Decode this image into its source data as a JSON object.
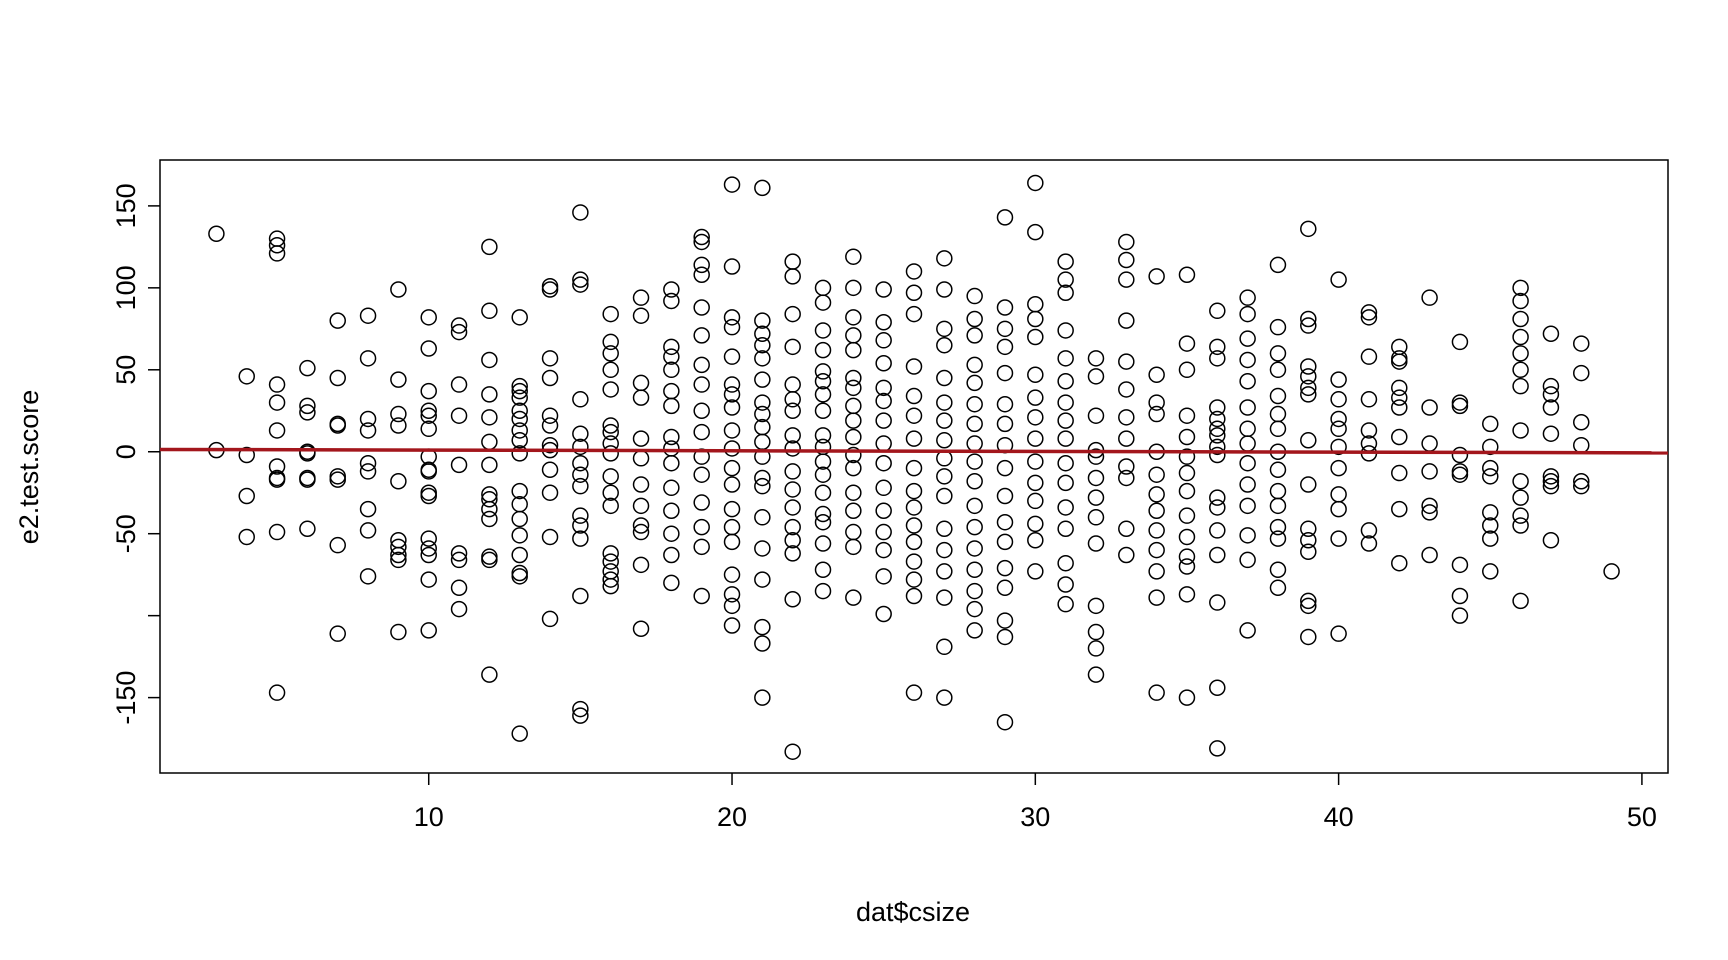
{
  "chart_data": {
    "type": "scatter",
    "xlabel": "dat$csize",
    "ylabel": "e2.test.score",
    "xlim": [
      1.14,
      50.86
    ],
    "ylim": [
      -196,
      178
    ],
    "xticks": [
      10,
      20,
      30,
      40,
      50
    ],
    "yticks": [
      -150,
      {
        "value": -100,
        "label": null
      },
      -50,
      0,
      50,
      100,
      150
    ],
    "color": "#000000",
    "regression": {
      "intercept": 1.45,
      "slope": -0.042,
      "color": "#a3161c"
    },
    "x": [
      3,
      3,
      4,
      4,
      4,
      4,
      5,
      5,
      5,
      5,
      5,
      5,
      5,
      5,
      5,
      5,
      5,
      6,
      6,
      6,
      6,
      6,
      6,
      6,
      6,
      7,
      7,
      7,
      7,
      7,
      7,
      7,
      7,
      8,
      8,
      8,
      8,
      8,
      8,
      8,
      8,
      8,
      9,
      9,
      9,
      9,
      9,
      9,
      9,
      9,
      9,
      9,
      10,
      10,
      10,
      10,
      10,
      10,
      10,
      10,
      10,
      10,
      10,
      10,
      10,
      10,
      10,
      10,
      11,
      11,
      11,
      11,
      11,
      11,
      11,
      11,
      11,
      12,
      12,
      12,
      12,
      12,
      12,
      12,
      12,
      12,
      12,
      12,
      12,
      12,
      12,
      13,
      13,
      13,
      13,
      13,
      13,
      13,
      13,
      13,
      13,
      13,
      13,
      13,
      13,
      13,
      13,
      13,
      14,
      14,
      14,
      14,
      14,
      14,
      14,
      14,
      14,
      14,
      14,
      14,
      15,
      15,
      15,
      15,
      15,
      15,
      15,
      15,
      15,
      15,
      15,
      15,
      15,
      15,
      15,
      16,
      16,
      16,
      16,
      16,
      16,
      16,
      16,
      16,
      16,
      16,
      16,
      16,
      16,
      16,
      16,
      16,
      17,
      17,
      17,
      17,
      17,
      17,
      17,
      17,
      17,
      17,
      17,
      17,
      18,
      18,
      18,
      18,
      18,
      18,
      18,
      18,
      18,
      18,
      18,
      18,
      18,
      18,
      18,
      19,
      19,
      19,
      19,
      19,
      19,
      19,
      19,
      19,
      19,
      19,
      19,
      19,
      19,
      19,
      19,
      20,
      20,
      20,
      20,
      20,
      20,
      20,
      20,
      20,
      20,
      20,
      20,
      20,
      20,
      20,
      20,
      20,
      20,
      20,
      21,
      21,
      21,
      21,
      21,
      21,
      21,
      21,
      21,
      21,
      21,
      21,
      21,
      21,
      21,
      21,
      21,
      21,
      21,
      22,
      22,
      22,
      22,
      22,
      22,
      22,
      22,
      22,
      22,
      22,
      22,
      22,
      22,
      22,
      22,
      22,
      23,
      23,
      23,
      23,
      23,
      23,
      23,
      23,
      23,
      23,
      23,
      23,
      23,
      23,
      23,
      23,
      23,
      23,
      24,
      24,
      24,
      24,
      24,
      24,
      24,
      24,
      24,
      24,
      24,
      24,
      24,
      24,
      24,
      24,
      24,
      25,
      25,
      25,
      25,
      25,
      25,
      25,
      25,
      25,
      25,
      25,
      25,
      25,
      25,
      25,
      26,
      26,
      26,
      26,
      26,
      26,
      26,
      26,
      26,
      26,
      26,
      26,
      26,
      26,
      26,
      26,
      27,
      27,
      27,
      27,
      27,
      27,
      27,
      27,
      27,
      27,
      27,
      27,
      27,
      27,
      27,
      27,
      27,
      28,
      28,
      28,
      28,
      28,
      28,
      28,
      28,
      28,
      28,
      28,
      28,
      28,
      28,
      28,
      28,
      28,
      29,
      29,
      29,
      29,
      29,
      29,
      29,
      29,
      29,
      29,
      29,
      29,
      29,
      29,
      29,
      29,
      29,
      30,
      30,
      30,
      30,
      30,
      30,
      30,
      30,
      30,
      30,
      30,
      30,
      30,
      30,
      30,
      31,
      31,
      31,
      31,
      31,
      31,
      31,
      31,
      31,
      31,
      31,
      31,
      31,
      31,
      31,
      31,
      32,
      32,
      32,
      32,
      32,
      32,
      32,
      32,
      32,
      32,
      32,
      32,
      32,
      33,
      33,
      33,
      33,
      33,
      33,
      33,
      33,
      33,
      33,
      33,
      33,
      34,
      34,
      34,
      34,
      34,
      34,
      34,
      34,
      34,
      34,
      34,
      34,
      34,
      35,
      35,
      35,
      35,
      35,
      35,
      35,
      35,
      35,
      35,
      35,
      35,
      35,
      35,
      36,
      36,
      36,
      36,
      36,
      36,
      36,
      36,
      36,
      36,
      36,
      36,
      36,
      36,
      36,
      36,
      37,
      37,
      37,
      37,
      37,
      37,
      37,
      37,
      37,
      37,
      37,
      37,
      37,
      37,
      38,
      38,
      38,
      38,
      38,
      38,
      38,
      38,
      38,
      38,
      38,
      38,
      38,
      38,
      38,
      39,
      39,
      39,
      39,
      39,
      39,
      39,
      39,
      39,
      39,
      39,
      39,
      39,
      39,
      39,
      40,
      40,
      40,
      40,
      40,
      40,
      40,
      40,
      40,
      40,
      40,
      41,
      41,
      41,
      41,
      41,
      41,
      41,
      41,
      41,
      42,
      42,
      42,
      42,
      42,
      42,
      42,
      42,
      42,
      42,
      43,
      43,
      43,
      43,
      43,
      43,
      43,
      44,
      44,
      44,
      44,
      44,
      44,
      44,
      44,
      44,
      45,
      45,
      45,
      45,
      45,
      45,
      45,
      45,
      46,
      46,
      46,
      46,
      46,
      46,
      46,
      46,
      46,
      46,
      46,
      46,
      46,
      47,
      47,
      47,
      47,
      47,
      47,
      47,
      47,
      47,
      48,
      48,
      48,
      48,
      48,
      48,
      49
    ],
    "values": [
      133,
      1,
      46,
      -2,
      -27,
      -52,
      130,
      126,
      121,
      41,
      30,
      13,
      -9,
      -16,
      -17,
      -49,
      -147,
      51,
      28,
      24,
      0,
      -1,
      -16,
      -17,
      -47,
      80,
      45,
      16,
      17,
      -15,
      -17,
      -57,
      -111,
      83,
      57,
      20,
      13,
      -7,
      -12,
      -35,
      -48,
      -76,
      99,
      44,
      23,
      16,
      -18,
      -54,
      -58,
      -63,
      -66,
      -110,
      82,
      63,
      37,
      25,
      22,
      14,
      -3,
      -11,
      -12,
      -25,
      -27,
      -53,
      -59,
      -63,
      -78,
      -109,
      77,
      73,
      41,
      22,
      -8,
      -62,
      -66,
      -83,
      -96,
      125,
      86,
      56,
      35,
      21,
      6,
      -8,
      -26,
      -29,
      -35,
      -41,
      -64,
      -66,
      -136,
      82,
      40,
      37,
      33,
      25,
      20,
      13,
      7,
      -1,
      -24,
      -32,
      -41,
      -51,
      -63,
      -74,
      -76,
      -172,
      101,
      99,
      57,
      45,
      22,
      16,
      4,
      1,
      -11,
      -25,
      -52,
      -102,
      146,
      105,
      102,
      32,
      11,
      3,
      -7,
      -14,
      -21,
      -39,
      -45,
      -53,
      -88,
      -157,
      -161,
      84,
      67,
      60,
      50,
      38,
      16,
      12,
      5,
      -1,
      -15,
      -25,
      -33,
      -62,
      -67,
      -73,
      -78,
      -82,
      94,
      83,
      42,
      33,
      8,
      -4,
      -20,
      -33,
      -45,
      -49,
      -69,
      -108,
      99,
      92,
      64,
      58,
      50,
      37,
      28,
      9,
      2,
      -7,
      -22,
      -36,
      -50,
      -63,
      -80,
      131,
      128,
      114,
      108,
      88,
      71,
      53,
      41,
      25,
      12,
      -3,
      -14,
      -31,
      -46,
      -58,
      -88,
      163,
      113,
      82,
      76,
      58,
      41,
      35,
      27,
      13,
      2,
      -10,
      -20,
      -35,
      -46,
      -55,
      -75,
      -87,
      -94,
      -106,
      161,
      80,
      72,
      65,
      57,
      44,
      30,
      23,
      15,
      6,
      -3,
      -16,
      -21,
      -40,
      -59,
      -78,
      -107,
      -117,
      -150,
      116,
      107,
      84,
      64,
      41,
      32,
      25,
      10,
      2,
      -12,
      -23,
      -34,
      -46,
      -54,
      -62,
      -90,
      -183,
      100,
      91,
      74,
      62,
      49,
      43,
      35,
      25,
      10,
      3,
      -6,
      -14,
      -25,
      -38,
      -43,
      -56,
      -72,
      -85,
      119,
      100,
      82,
      71,
      62,
      45,
      39,
      28,
      19,
      9,
      -2,
      -10,
      -25,
      -36,
      -49,
      -58,
      -89,
      99,
      79,
      68,
      54,
      39,
      31,
      19,
      5,
      -7,
      -22,
      -36,
      -49,
      -60,
      -76,
      -99,
      110,
      97,
      84,
      52,
      34,
      22,
      8,
      -10,
      -24,
      -34,
      -45,
      -55,
      -67,
      -78,
      -88,
      -147,
      118,
      99,
      75,
      65,
      45,
      30,
      19,
      7,
      -4,
      -15,
      -27,
      -47,
      -60,
      -73,
      -89,
      -119,
      -150,
      95,
      81,
      71,
      53,
      42,
      29,
      17,
      5,
      -6,
      -18,
      -33,
      -46,
      -59,
      -72,
      -85,
      -96,
      -109,
      143,
      88,
      75,
      64,
      48,
      29,
      17,
      4,
      -10,
      -27,
      -43,
      -55,
      -71,
      -83,
      -103,
      -113,
      -165,
      164,
      134,
      90,
      81,
      70,
      47,
      33,
      21,
      8,
      -6,
      -19,
      -30,
      -44,
      -54,
      -73,
      116,
      105,
      97,
      74,
      57,
      43,
      30,
      19,
      8,
      -7,
      -19,
      -34,
      -47,
      -68,
      -81,
      -93,
      57,
      46,
      22,
      1,
      -3,
      -16,
      -28,
      -40,
      -56,
      -94,
      -110,
      -120,
      -136,
      128,
      117,
      105,
      80,
      55,
      38,
      21,
      8,
      -9,
      -16,
      -47,
      -63,
      107,
      47,
      30,
      23,
      0,
      -14,
      -26,
      -36,
      -48,
      -60,
      -73,
      -89,
      -147,
      108,
      66,
      50,
      22,
      9,
      -3,
      -13,
      -24,
      -39,
      -52,
      -64,
      -70,
      -87,
      -150,
      86,
      64,
      57,
      27,
      20,
      14,
      10,
      3,
      -2,
      -28,
      -34,
      -48,
      -63,
      -92,
      -144,
      -181,
      94,
      84,
      69,
      56,
      43,
      27,
      14,
      5,
      -7,
      -20,
      -33,
      -51,
      -66,
      -109,
      114,
      76,
      60,
      50,
      34,
      23,
      14,
      0,
      -11,
      -24,
      -33,
      -46,
      -53,
      -72,
      -83,
      136,
      81,
      77,
      52,
      46,
      39,
      35,
      7,
      -20,
      -47,
      -54,
      -61,
      -91,
      -94,
      -113,
      105,
      44,
      32,
      20,
      14,
      3,
      -10,
      -26,
      -35,
      -53,
      -111,
      85,
      82,
      58,
      32,
      13,
      5,
      -1,
      -48,
      -56,
      64,
      57,
      55,
      39,
      33,
      27,
      9,
      -13,
      -35,
      -68,
      94,
      27,
      5,
      -12,
      -33,
      -37,
      -63,
      67,
      30,
      28,
      -2,
      -12,
      -14,
      -69,
      -88,
      -100,
      17,
      3,
      -10,
      -15,
      -37,
      -45,
      -53,
      -73,
      100,
      92,
      81,
      70,
      60,
      50,
      40,
      13,
      -18,
      -28,
      -39,
      -45,
      -91,
      72,
      40,
      35,
      27,
      11,
      -15,
      -18,
      -21,
      -54,
      66,
      48,
      18,
      4,
      -18,
      -21,
      -73
    ]
  }
}
